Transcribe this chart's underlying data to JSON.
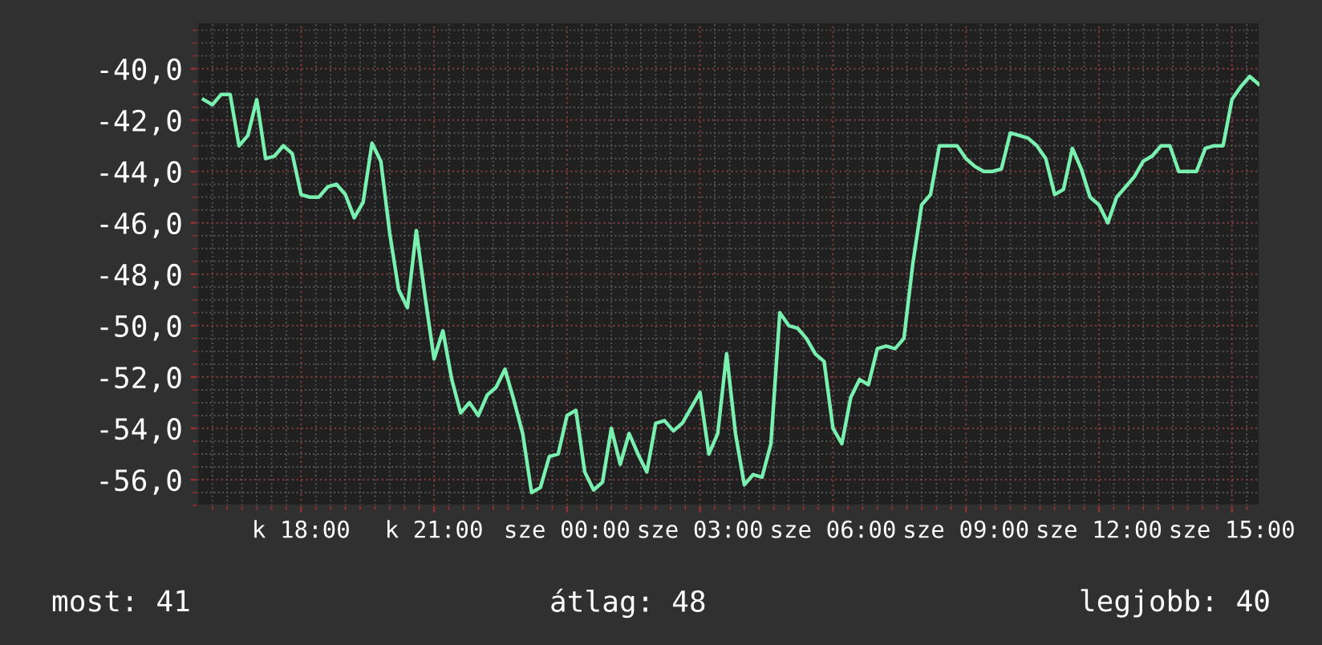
{
  "chart_data": {
    "type": "line",
    "categories": [
      null,
      null,
      null,
      null,
      null,
      null,
      null,
      null,
      null,
      null,
      null,
      "k 18:00",
      null,
      null,
      null,
      null,
      null,
      null,
      null,
      null,
      null,
      null,
      null,
      null,
      null,
      null,
      "k 21:00",
      null,
      null,
      null,
      null,
      null,
      null,
      null,
      null,
      null,
      null,
      null,
      null,
      null,
      null,
      "sze 00:00",
      null,
      null,
      null,
      null,
      null,
      null,
      null,
      null,
      null,
      null,
      null,
      null,
      null,
      null,
      "sze 03:00",
      null,
      null,
      null,
      null,
      null,
      null,
      null,
      null,
      null,
      null,
      null,
      null,
      null,
      null,
      "sze 06:00",
      null,
      null,
      null,
      null,
      null,
      null,
      null,
      null,
      null,
      null,
      null,
      null,
      null,
      null,
      "sze 09:00",
      null,
      null,
      null,
      null,
      null,
      null,
      null,
      null,
      null,
      null,
      null,
      null,
      null,
      null,
      "sze 12:00",
      null,
      null,
      null,
      null,
      null,
      null,
      null,
      null,
      null,
      null,
      null,
      null,
      null,
      null,
      "sze 15:00",
      null,
      null,
      null
    ],
    "series": [
      {
        "color": "#7af0b0",
        "values": [
          -41.2,
          -41.4,
          -41.0,
          -41.0,
          -43.0,
          -42.6,
          -41.2,
          -43.5,
          -43.4,
          -43.0,
          -43.3,
          -44.9,
          -45.0,
          -45.0,
          -44.6,
          -44.5,
          -44.9,
          -45.8,
          -45.2,
          -42.9,
          -43.6,
          -46.4,
          -48.6,
          -49.3,
          -46.3,
          -48.9,
          -51.3,
          -50.2,
          -52.1,
          -53.4,
          -53.0,
          -53.5,
          -52.7,
          -52.4,
          -51.7,
          -52.9,
          -54.2,
          -56.5,
          -56.3,
          -55.1,
          -55.0,
          -53.5,
          -53.3,
          -55.7,
          -56.4,
          -56.1,
          -54.0,
          -55.4,
          -54.2,
          -55.0,
          -55.7,
          -53.8,
          -53.7,
          -54.1,
          -53.8,
          -53.2,
          -52.6,
          -55.0,
          -54.2,
          -51.1,
          -54.2,
          -56.2,
          -55.8,
          -55.9,
          -54.6,
          -49.5,
          -50.0,
          -50.1,
          -50.5,
          -51.1,
          -51.4,
          -54.0,
          -54.6,
          -52.8,
          -52.1,
          -52.3,
          -50.9,
          -50.8,
          -50.9,
          -50.5,
          -47.6,
          -45.3,
          -44.9,
          -43.0,
          -43.0,
          -43.0,
          -43.5,
          -43.8,
          -44.0,
          -44.0,
          -43.9,
          -42.5,
          -42.6,
          -42.7,
          -43.0,
          -43.5,
          -44.9,
          -44.7,
          -43.1,
          -43.9,
          -45.0,
          -45.3,
          -46.0,
          -45.0,
          -44.6,
          -44.2,
          -43.6,
          -43.4,
          -43.0,
          -43.0,
          -44.0,
          -44.0,
          -44.0,
          -43.1,
          -43.0,
          -43.0,
          -41.2,
          -40.7,
          -40.3,
          -40.6
        ]
      }
    ],
    "ylim": [
      -57.0,
      -38.2
    ],
    "yticks": [
      {
        "value": -40,
        "label": "-40,0"
      },
      {
        "value": -42,
        "label": "-42,0"
      },
      {
        "value": -44,
        "label": "-44,0"
      },
      {
        "value": -46,
        "label": "-46,0"
      },
      {
        "value": -48,
        "label": "-48,0"
      },
      {
        "value": -50,
        "label": "-50,0"
      },
      {
        "value": -52,
        "label": "-52,0"
      },
      {
        "value": -54,
        "label": "-54,0"
      },
      {
        "value": -56,
        "label": "-56,0"
      }
    ],
    "grid": true,
    "line_style": "solid",
    "annotations": [
      "most: 41",
      "átlag: 48",
      "legjobb: 40"
    ]
  }
}
